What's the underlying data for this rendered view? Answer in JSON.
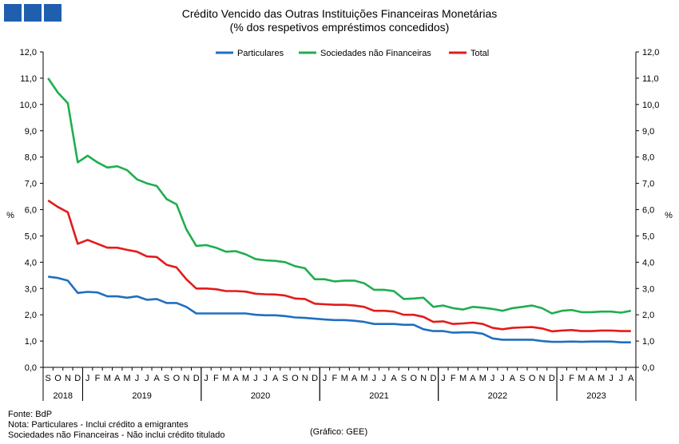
{
  "header": {
    "title": "Crédito Vencido das Outras Instituições Financeiras Monetárias",
    "subtitle": "(% dos respetivos empréstimos concedidos)"
  },
  "footer": {
    "source": "Fonte: BdP",
    "note1": "Nota: Particulares - Inclui crédito a emigrantes",
    "note2": "Sociedades não Financeiras - Não inclui crédito titulado",
    "credit": "(Gráfico: GEE)"
  },
  "chart_data": {
    "type": "line",
    "title": "Crédito Vencido das Outras Instituições Financeiras Monetárias",
    "subtitle": "(% dos respetivos empréstimos concedidos)",
    "ylabel_left": "%",
    "ylabel_right": "%",
    "ylim": [
      0,
      12
    ],
    "yticks": [
      "0,0",
      "1,0",
      "2,0",
      "3,0",
      "4,0",
      "5,0",
      "6,0",
      "7,0",
      "8,0",
      "9,0",
      "10,0",
      "11,0",
      "12,0"
    ],
    "legend_position": "top-center",
    "grid": false,
    "x": [
      "2018-09",
      "2018-10",
      "2018-11",
      "2018-12",
      "2019-01",
      "2019-02",
      "2019-03",
      "2019-04",
      "2019-05",
      "2019-06",
      "2019-07",
      "2019-08",
      "2019-09",
      "2019-10",
      "2019-11",
      "2019-12",
      "2020-01",
      "2020-02",
      "2020-03",
      "2020-04",
      "2020-05",
      "2020-06",
      "2020-07",
      "2020-08",
      "2020-09",
      "2020-10",
      "2020-11",
      "2020-12",
      "2021-01",
      "2021-02",
      "2021-03",
      "2021-04",
      "2021-05",
      "2021-06",
      "2021-07",
      "2021-08",
      "2021-09",
      "2021-10",
      "2021-11",
      "2021-12",
      "2022-01",
      "2022-02",
      "2022-03",
      "2022-04",
      "2022-05",
      "2022-06",
      "2022-07",
      "2022-08",
      "2022-09",
      "2022-10",
      "2022-11",
      "2022-12",
      "2023-01",
      "2023-02",
      "2023-03",
      "2023-04",
      "2023-05",
      "2023-06",
      "2023-07",
      "2023-08"
    ],
    "month_labels": [
      "S",
      "O",
      "N",
      "D",
      "J",
      "F",
      "M",
      "A",
      "M",
      "J",
      "J",
      "A",
      "S",
      "O",
      "N",
      "D",
      "J",
      "F",
      "M",
      "A",
      "M",
      "J",
      "J",
      "A",
      "S",
      "O",
      "N",
      "D",
      "J",
      "F",
      "M",
      "A",
      "M",
      "J",
      "J",
      "A",
      "S",
      "O",
      "N",
      "D",
      "J",
      "F",
      "M",
      "A",
      "M",
      "J",
      "J",
      "A",
      "S",
      "O",
      "N",
      "D",
      "J",
      "F",
      "M",
      "A",
      "M",
      "J",
      "J",
      "A"
    ],
    "year_labels": [
      {
        "label": "2018",
        "start": 0,
        "end": 4
      },
      {
        "label": "2019",
        "start": 4,
        "end": 16
      },
      {
        "label": "2020",
        "start": 16,
        "end": 28
      },
      {
        "label": "2021",
        "start": 28,
        "end": 40
      },
      {
        "label": "2022",
        "start": 40,
        "end": 52
      },
      {
        "label": "2023",
        "start": 52,
        "end": 60
      }
    ],
    "series": [
      {
        "name": "Particulares",
        "color": "#1f6fc0",
        "values": [
          3.45,
          3.4,
          3.3,
          2.83,
          2.87,
          2.85,
          2.7,
          2.7,
          2.65,
          2.7,
          2.57,
          2.6,
          2.45,
          2.45,
          2.3,
          2.05,
          2.05,
          2.05,
          2.05,
          2.05,
          2.05,
          2.0,
          1.98,
          1.98,
          1.95,
          1.9,
          1.88,
          1.85,
          1.82,
          1.8,
          1.8,
          1.77,
          1.73,
          1.65,
          1.65,
          1.65,
          1.62,
          1.62,
          1.45,
          1.38,
          1.38,
          1.32,
          1.33,
          1.33,
          1.28,
          1.1,
          1.05,
          1.05,
          1.05,
          1.05,
          1.0,
          0.97,
          0.97,
          0.98,
          0.97,
          0.98,
          0.98,
          0.98,
          0.95,
          0.95
        ]
      },
      {
        "name": "Sociedades não Financeiras",
        "color": "#1fae4f",
        "values": [
          11.0,
          10.45,
          10.05,
          7.8,
          8.05,
          7.8,
          7.6,
          7.65,
          7.5,
          7.15,
          7.0,
          6.9,
          6.4,
          6.2,
          5.25,
          4.62,
          4.65,
          4.55,
          4.4,
          4.42,
          4.3,
          4.12,
          4.07,
          4.05,
          4.0,
          3.85,
          3.77,
          3.35,
          3.35,
          3.27,
          3.3,
          3.3,
          3.2,
          2.95,
          2.95,
          2.9,
          2.6,
          2.62,
          2.65,
          2.3,
          2.35,
          2.25,
          2.2,
          2.3,
          2.27,
          2.22,
          2.15,
          2.25,
          2.3,
          2.35,
          2.25,
          2.05,
          2.15,
          2.18,
          2.1,
          2.1,
          2.12,
          2.12,
          2.08,
          2.15
        ]
      },
      {
        "name": "Total",
        "color": "#e31b1b",
        "values": [
          6.35,
          6.1,
          5.9,
          4.7,
          4.85,
          4.7,
          4.55,
          4.55,
          4.47,
          4.4,
          4.22,
          4.2,
          3.9,
          3.8,
          3.35,
          3.0,
          3.0,
          2.97,
          2.9,
          2.9,
          2.88,
          2.8,
          2.78,
          2.77,
          2.73,
          2.62,
          2.6,
          2.42,
          2.4,
          2.38,
          2.38,
          2.35,
          2.3,
          2.15,
          2.15,
          2.12,
          2.0,
          2.0,
          1.92,
          1.73,
          1.75,
          1.65,
          1.67,
          1.7,
          1.65,
          1.5,
          1.45,
          1.5,
          1.52,
          1.53,
          1.48,
          1.37,
          1.4,
          1.42,
          1.38,
          1.38,
          1.4,
          1.4,
          1.38,
          1.38
        ]
      }
    ]
  }
}
